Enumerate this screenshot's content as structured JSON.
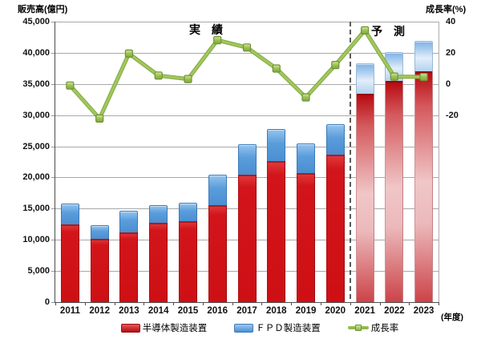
{
  "axis_left": {
    "title": "販売高(億円)",
    "max": 45000,
    "step": 5000,
    "tick_labels": [
      "45,000",
      "40,000",
      "35,000",
      "30,000",
      "25,000",
      "20,000",
      "15,000",
      "10,000",
      "5,000",
      "0"
    ]
  },
  "axis_right": {
    "title": "成長率(%)",
    "ticks": [
      {
        "label": "40",
        "anchor_value": 45000
      },
      {
        "label": "20",
        "anchor_value": 40000
      },
      {
        "label": "0",
        "anchor_value": 35000
      },
      {
        "label": "-20",
        "anchor_value": 30000
      }
    ]
  },
  "annotations": {
    "actual_label": "実　績",
    "forecast_label": "予　測",
    "x_axis_unit": "(年度)"
  },
  "chart_data": {
    "type": "bar",
    "subtype": "stacked-bars-with-growth-line",
    "categories": [
      "2011",
      "2012",
      "2013",
      "2014",
      "2015",
      "2016",
      "2017",
      "2018",
      "2019",
      "2020",
      "2021",
      "2022",
      "2023"
    ],
    "forecast_from_index": 10,
    "xlabel": "(年度)",
    "ylabel_left": "販売高(億円)",
    "ylabel_right": "成長率(%)",
    "ylim_left": [
      0,
      45000
    ],
    "right_axis_mapping": {
      "percent_0_at_left_value": 35000,
      "left_units_per_20_percent": 5000
    },
    "grid": "horizontal",
    "legend_position": "bottom",
    "series": [
      {
        "name": "半導体製造装置",
        "type": "bar",
        "color": "#d2151a",
        "values": [
          12500,
          10200,
          11200,
          12700,
          13000,
          15600,
          20500,
          22600,
          20700,
          23700,
          33400,
          35500,
          37000
        ]
      },
      {
        "name": "ＦＰＤ製造装置",
        "type": "bar",
        "color": "#4e93d6",
        "values": [
          3300,
          2100,
          3500,
          2800,
          3000,
          4900,
          4800,
          5200,
          4700,
          4800,
          4900,
          4600,
          4900
        ]
      },
      {
        "name": "成長率",
        "type": "line",
        "axis": "right",
        "color": "#94b94e",
        "values": [
          -1.0,
          -22.2,
          19.5,
          5.4,
          3.2,
          28.1,
          23.4,
          9.9,
          -8.6,
          12.2,
          34.4,
          4.7,
          4.5
        ]
      }
    ],
    "totals": [
      15800,
      12300,
      14700,
      15500,
      16000,
      20500,
      25300,
      27800,
      25400,
      28500,
      38300,
      40100,
      41900
    ]
  },
  "colors": {
    "red_bar": "#d2151a",
    "blue_bar": "#4e93d6",
    "green_line": "#94b94e",
    "marker_border": "#6f9434",
    "gridline": "#a8a8a8",
    "axis_line": "#4d4d4d",
    "divider": "#5a5a5a"
  }
}
